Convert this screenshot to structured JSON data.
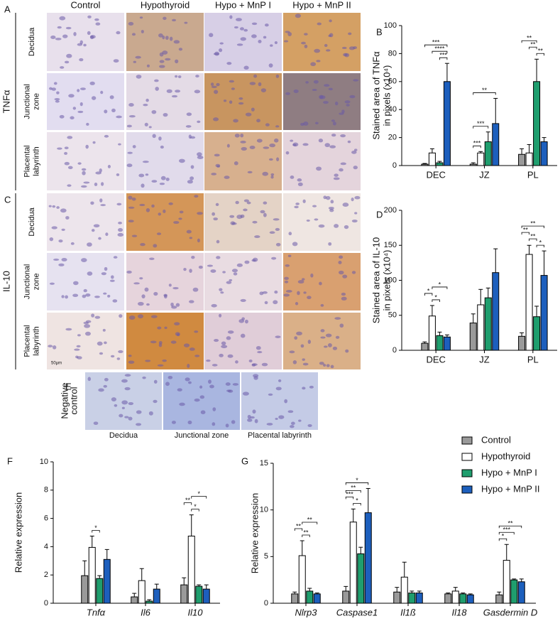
{
  "figure": {
    "panel_labels": [
      "A",
      "B",
      "C",
      "D",
      "E",
      "F",
      "G"
    ],
    "micrographs": {
      "columns": [
        "Control",
        "Hypothyroid",
        "Hypo + MnP I",
        "Hypo + MnP II"
      ],
      "markers": [
        "TNFα",
        "IL-10"
      ],
      "rows": [
        [
          "Decidua"
        ],
        [
          "Junctional",
          "zone"
        ],
        [
          "Placental",
          "labyrinth"
        ]
      ],
      "scale_label": "50μm"
    },
    "negative_control": {
      "label": [
        "Negative",
        "control"
      ],
      "tissues": [
        "Decidua",
        "Junctional zone",
        "Placental labyrinth"
      ]
    }
  },
  "chart_data": [
    {
      "type": "bar",
      "ylabel": [
        "Stained area of TNFα",
        "in pixels (x10⁴)"
      ],
      "categories": [
        "DEC",
        "JZ",
        "PL"
      ],
      "ylim": [
        0,
        100
      ],
      "yticks": [
        0,
        20,
        40,
        60,
        80,
        100
      ],
      "series": [
        {
          "name": "Control",
          "color": "#9a9a9a",
          "values": [
            1,
            1,
            8
          ],
          "errors": [
            0.5,
            1,
            4
          ]
        },
        {
          "name": "Hypothyroid",
          "color": "#ffffff",
          "values": [
            9,
            9,
            9
          ],
          "errors": [
            3,
            1,
            6
          ]
        },
        {
          "name": "Hypo + MnP I",
          "color": "#1f9e6e",
          "values": [
            2,
            17,
            60
          ],
          "errors": [
            1,
            7,
            16
          ]
        },
        {
          "name": "Hypo + MnP II",
          "color": "#1d5fbd",
          "values": [
            60,
            30,
            17
          ],
          "errors": [
            13,
            18,
            3
          ]
        }
      ],
      "significance": [
        {
          "category": "DEC",
          "between": [
            "Hypo + MnP I",
            "Hypo + MnP II"
          ],
          "label": "***"
        },
        {
          "category": "DEC",
          "between": [
            "Hypothyroid",
            "Hypo + MnP II"
          ],
          "label": "****"
        },
        {
          "category": "DEC",
          "between": [
            "Control",
            "Hypo + MnP II"
          ],
          "label": "***"
        },
        {
          "category": "JZ",
          "between": [
            "Control",
            "Hypothyroid"
          ],
          "label": "***"
        },
        {
          "category": "JZ",
          "between": [
            "Control",
            "Hypo + MnP I"
          ],
          "label": "***"
        },
        {
          "category": "JZ",
          "between": [
            "Control",
            "Hypo + MnP II"
          ],
          "label": "**"
        },
        {
          "category": "PL",
          "between": [
            "Hypo + MnP I",
            "Hypo + MnP II"
          ],
          "label": "**"
        },
        {
          "category": "PL",
          "between": [
            "Hypothyroid",
            "Hypo + MnP I"
          ],
          "label": "**"
        },
        {
          "category": "PL",
          "between": [
            "Control",
            "Hypo + MnP I"
          ],
          "label": "**"
        }
      ]
    },
    {
      "type": "bar",
      "ylabel": [
        "Stained area of IL-10",
        "in pixels (x10⁴)"
      ],
      "categories": [
        "DEC",
        "JZ",
        "PL"
      ],
      "ylim": [
        0,
        200
      ],
      "yticks": [
        0,
        50,
        100,
        150,
        200
      ],
      "series": [
        {
          "name": "Control",
          "color": "#9a9a9a",
          "values": [
            10,
            39,
            20
          ],
          "errors": [
            2,
            13,
            5
          ]
        },
        {
          "name": "Hypothyroid",
          "color": "#ffffff",
          "values": [
            49,
            65,
            137
          ],
          "errors": [
            15,
            22,
            13
          ]
        },
        {
          "name": "Hypo + MnP I",
          "color": "#1f9e6e",
          "values": [
            21,
            75,
            48
          ],
          "errors": [
            5,
            14,
            15
          ]
        },
        {
          "name": "Hypo + MnP II",
          "color": "#1d5fbd",
          "values": [
            19,
            111,
            107
          ],
          "errors": [
            3,
            34,
            35
          ]
        }
      ],
      "significance": [
        {
          "category": "DEC",
          "between": [
            "Hypothyroid",
            "Hypo + MnP I"
          ],
          "label": "*"
        },
        {
          "category": "DEC",
          "between": [
            "Control",
            "Hypothyroid"
          ],
          "label": "*"
        },
        {
          "category": "DEC",
          "between": [
            "Hypothyroid",
            "Hypo + MnP II"
          ],
          "label": "*"
        },
        {
          "category": "PL",
          "between": [
            "Hypo + MnP I",
            "Hypo + MnP II"
          ],
          "label": "*"
        },
        {
          "category": "PL",
          "between": [
            "Hypothyroid",
            "Hypo + MnP I"
          ],
          "label": "**"
        },
        {
          "category": "PL",
          "between": [
            "Control",
            "Hypothyroid"
          ],
          "label": "**"
        },
        {
          "category": "PL",
          "between": [
            "Control",
            "Hypo + MnP II"
          ],
          "label": "**"
        }
      ]
    },
    {
      "type": "bar",
      "ylabel": [
        "Relative expression"
      ],
      "category_style": "italic",
      "categories": [
        "Tnfα",
        "Il6",
        "Il10"
      ],
      "ylim": [
        0,
        10
      ],
      "yticks": [
        0,
        2,
        4,
        6,
        8,
        10
      ],
      "series": [
        {
          "name": "Control",
          "color": "#9a9a9a",
          "values": [
            1.95,
            0.45,
            1.3
          ],
          "errors": [
            1.05,
            0.25,
            0.5
          ]
        },
        {
          "name": "Hypothyroid",
          "color": "#ffffff",
          "values": [
            3.95,
            1.6,
            4.75
          ],
          "errors": [
            0.8,
            0.85,
            1.5
          ]
        },
        {
          "name": "Hypo + MnP I",
          "color": "#1f9e6e",
          "values": [
            1.75,
            0.15,
            1.2
          ],
          "errors": [
            0.2,
            0.1,
            0.1
          ]
        },
        {
          "name": "Hypo + MnP II",
          "color": "#1d5fbd",
          "values": [
            3.1,
            1.0,
            1.0
          ],
          "errors": [
            0.7,
            0.35,
            0.3
          ]
        }
      ],
      "significance": [
        {
          "category": "Tnfα",
          "between": [
            "Hypothyroid",
            "Hypo + MnP I"
          ],
          "label": "*"
        },
        {
          "category": "Il10",
          "between": [
            "Hypothyroid",
            "Hypo + MnP I"
          ],
          "label": "*"
        },
        {
          "category": "Il10",
          "between": [
            "Control",
            "Hypothyroid"
          ],
          "label": "**"
        },
        {
          "category": "Il10",
          "between": [
            "Hypothyroid",
            "Hypo + MnP II"
          ],
          "label": "*"
        }
      ]
    },
    {
      "type": "bar",
      "ylabel": [
        "Relative expression"
      ],
      "category_style": "italic",
      "legend": "top-right",
      "categories": [
        "Nlrp3",
        "Caspase1",
        "Il1ß",
        "Il18",
        "Gasdermin D"
      ],
      "ylim": [
        0,
        15
      ],
      "yticks": [
        0,
        5,
        10,
        15
      ],
      "series": [
        {
          "name": "Control",
          "color": "#9a9a9a",
          "values": [
            1.0,
            1.3,
            1.2,
            1.0,
            0.9
          ],
          "errors": [
            0.2,
            0.5,
            0.5,
            0.1,
            0.3
          ]
        },
        {
          "name": "Hypothyroid",
          "color": "#ffffff",
          "values": [
            5.1,
            8.7,
            2.8,
            1.3,
            4.6
          ],
          "errors": [
            1.6,
            1.4,
            1.6,
            0.4,
            1.7
          ]
        },
        {
          "name": "Hypo + MnP I",
          "color": "#1f9e6e",
          "values": [
            1.3,
            5.3,
            1.1,
            1.0,
            2.5
          ],
          "errors": [
            0.3,
            0.7,
            0.2,
            0.1,
            0.1
          ]
        },
        {
          "name": "Hypo + MnP II",
          "color": "#1d5fbd",
          "values": [
            1.0,
            9.7,
            1.1,
            0.9,
            2.3
          ],
          "errors": [
            0.1,
            2.6,
            0.2,
            0.1,
            0.3
          ]
        }
      ],
      "significance": [
        {
          "category": "Nlrp3",
          "between": [
            "Hypothyroid",
            "Hypo + MnP I"
          ],
          "label": "**"
        },
        {
          "category": "Nlrp3",
          "between": [
            "Control",
            "Hypothyroid"
          ],
          "label": "**"
        },
        {
          "category": "Nlrp3",
          "between": [
            "Hypothyroid",
            "Hypo + MnP II"
          ],
          "label": "**"
        },
        {
          "category": "Caspase1",
          "between": [
            "Hypothyroid",
            "Hypo + MnP I"
          ],
          "label": "*"
        },
        {
          "category": "Caspase1",
          "between": [
            "Control",
            "Hypothyroid"
          ],
          "label": "***"
        },
        {
          "category": "Caspase1",
          "between": [
            "Control",
            "Hypo + MnP I"
          ],
          "label": "**"
        },
        {
          "category": "Caspase1",
          "between": [
            "Control",
            "Hypo + MnP II"
          ],
          "label": "*"
        },
        {
          "category": "Gasdermin D",
          "between": [
            "Control",
            "Hypothyroid"
          ],
          "label": "*"
        },
        {
          "category": "Gasdermin D",
          "between": [
            "Control",
            "Hypo + MnP I"
          ],
          "label": "***"
        },
        {
          "category": "Gasdermin D",
          "between": [
            "Control",
            "Hypo + MnP II"
          ],
          "label": "**"
        }
      ]
    }
  ]
}
